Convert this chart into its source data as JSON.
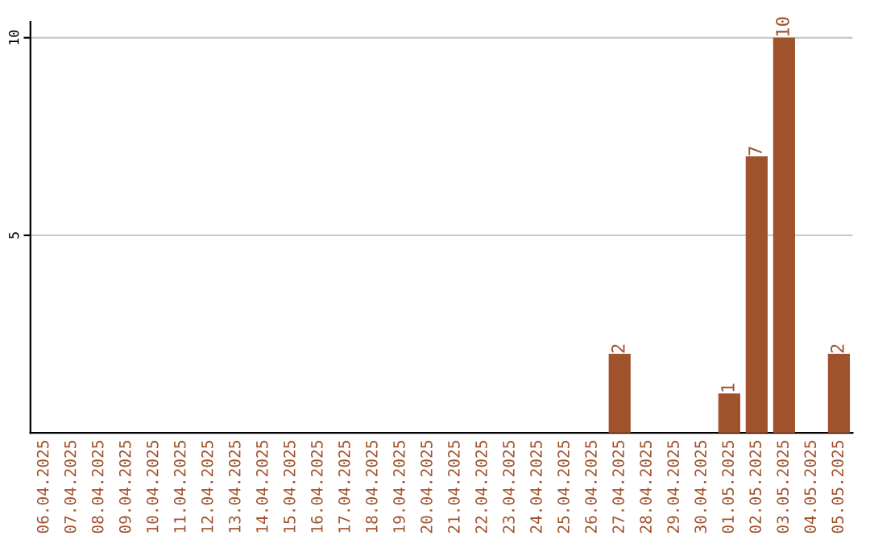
{
  "chart_data": {
    "type": "bar",
    "categories": [
      "06.04.2025",
      "07.04.2025",
      "08.04.2025",
      "09.04.2025",
      "10.04.2025",
      "11.04.2025",
      "12.04.2025",
      "13.04.2025",
      "14.04.2025",
      "15.04.2025",
      "16.04.2025",
      "17.04.2025",
      "18.04.2025",
      "19.04.2025",
      "20.04.2025",
      "21.04.2025",
      "22.04.2025",
      "23.04.2025",
      "24.04.2025",
      "25.04.2025",
      "26.04.2025",
      "27.04.2025",
      "28.04.2025",
      "29.04.2025",
      "30.04.2025",
      "01.05.2025",
      "02.05.2025",
      "03.05.2025",
      "04.05.2025",
      "05.05.2025"
    ],
    "values": [
      0,
      0,
      0,
      0,
      0,
      0,
      0,
      0,
      0,
      0,
      0,
      0,
      0,
      0,
      0,
      0,
      0,
      0,
      0,
      0,
      0,
      2,
      0,
      0,
      0,
      1,
      7,
      10,
      0,
      2
    ],
    "value_labels": [
      null,
      null,
      null,
      null,
      null,
      null,
      null,
      null,
      null,
      null,
      null,
      null,
      null,
      null,
      null,
      null,
      null,
      null,
      null,
      null,
      null,
      "2",
      null,
      null,
      null,
      "1",
      "7",
      "10",
      null,
      "2"
    ],
    "color": "#a0522d",
    "ylim": [
      0,
      10.4
    ],
    "yticks": [
      5,
      10
    ],
    "grid": "y"
  }
}
